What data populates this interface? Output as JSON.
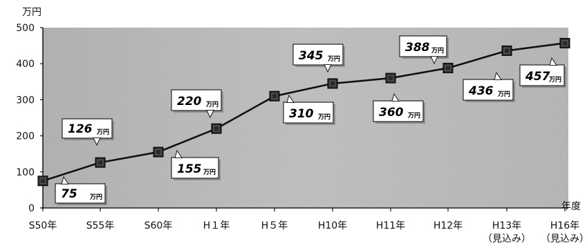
{
  "chart_data": {
    "type": "line",
    "y_unit": "万円",
    "x_unit": "年度",
    "categories": [
      "S50年",
      "S55年",
      "S60年",
      "H１年",
      "H５年",
      "H10年",
      "H11年",
      "H12年",
      "H13年\n（見込み）",
      "H16年\n（見込み）"
    ],
    "values": [
      75,
      126,
      155,
      220,
      310,
      345,
      360,
      388,
      436,
      457
    ],
    "labels": [
      "75",
      "126",
      "155",
      "220",
      "310",
      "345",
      "360",
      "388",
      "436",
      "457"
    ],
    "value_unit": "万円",
    "ylim": [
      0,
      500
    ],
    "yticks": [
      0,
      100,
      200,
      300,
      400,
      500
    ],
    "grid": false,
    "background_color": "#bdbdbd",
    "line_color": "#111111",
    "marker_color": "#2a2a2a"
  }
}
